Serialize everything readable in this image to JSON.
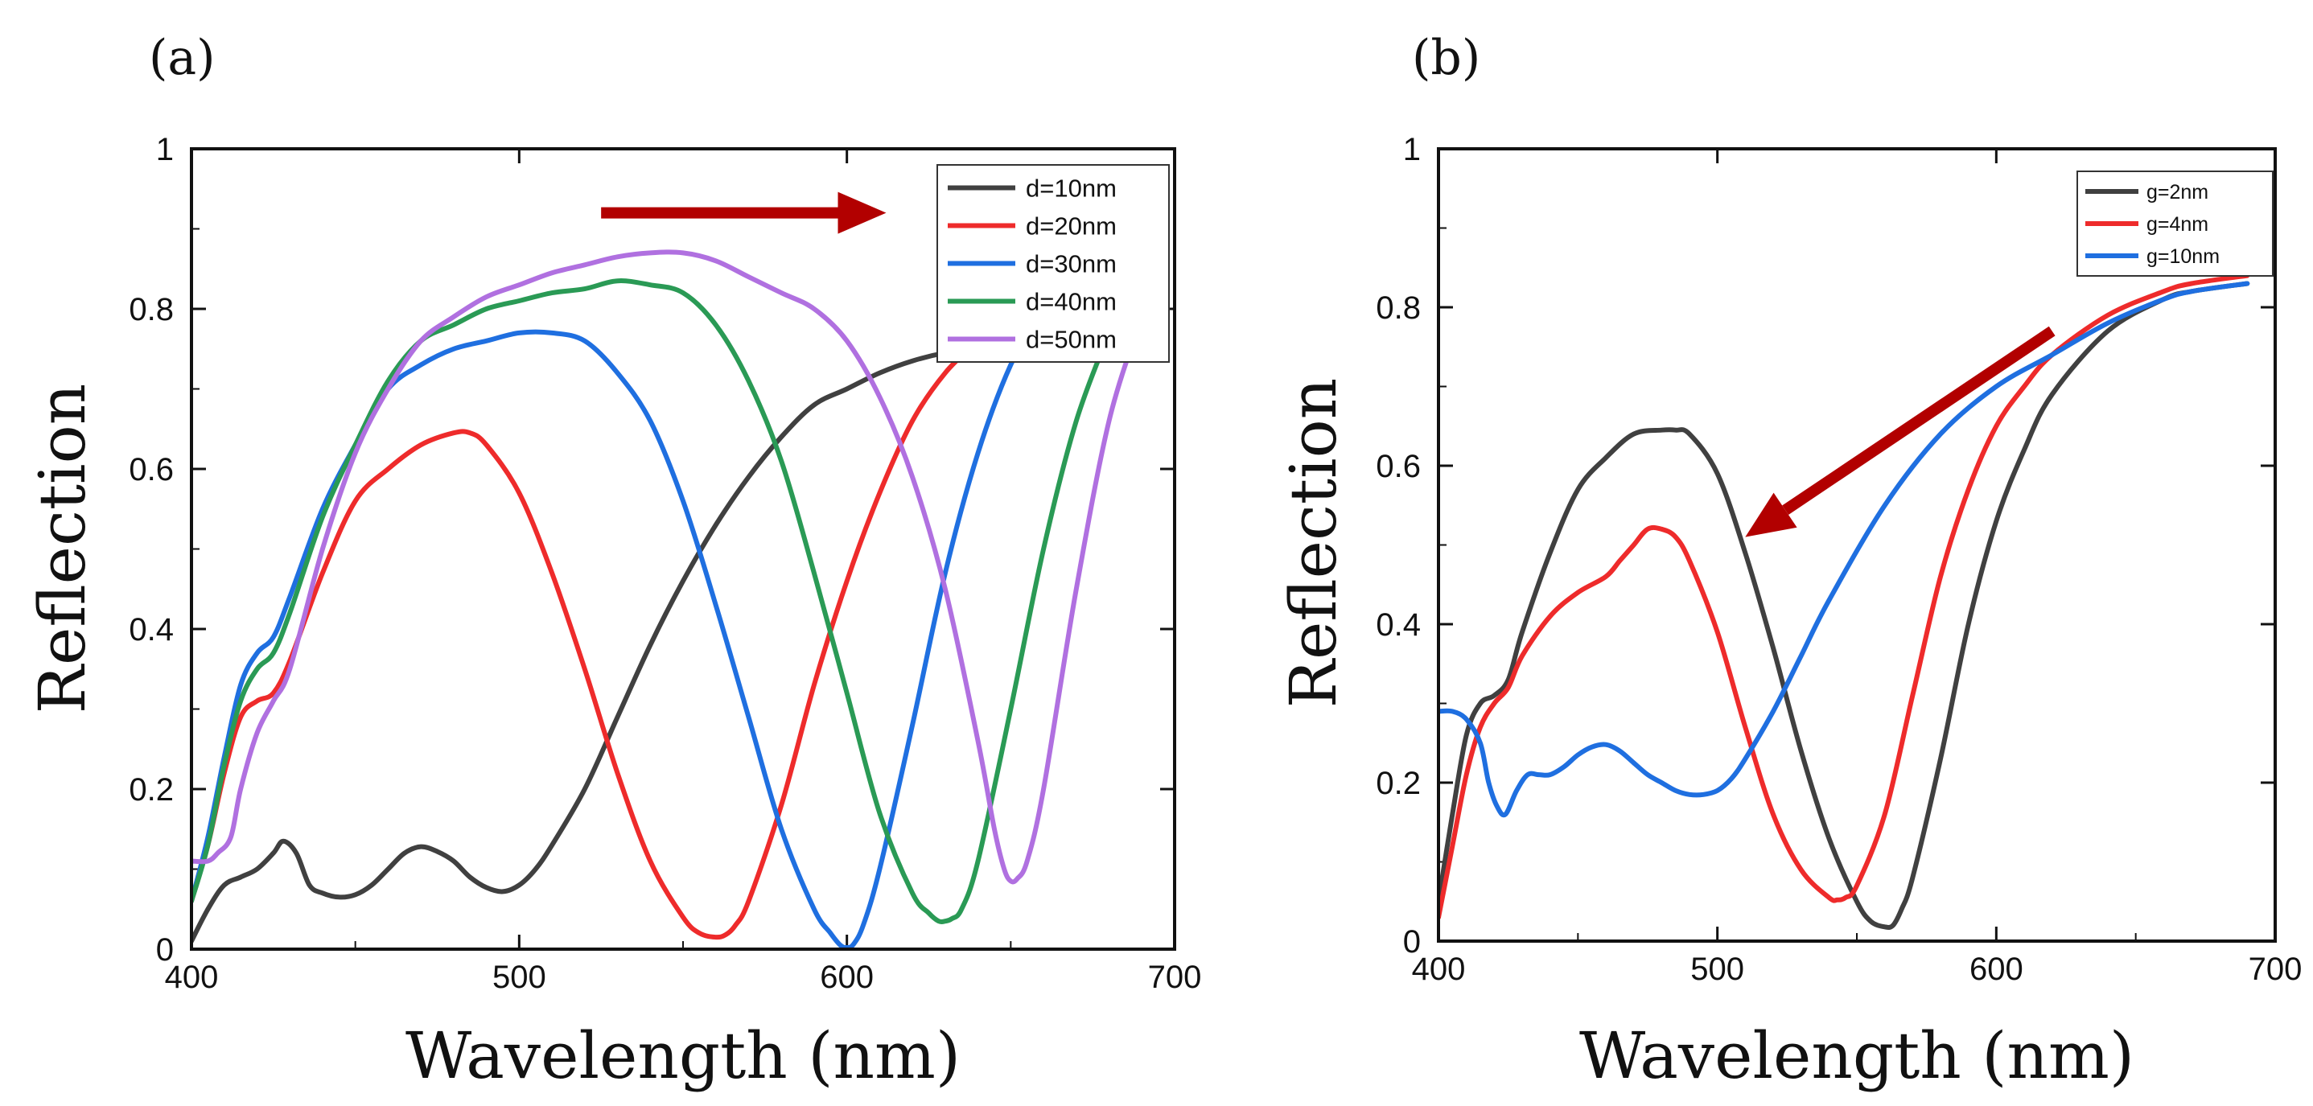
{
  "figure": {
    "panel_labels": [
      "(a)",
      "(b)"
    ]
  },
  "chart_data": [
    {
      "type": "line",
      "panel": "(a)",
      "xlabel": "Wavelength (nm)",
      "ylabel": "Reflection",
      "xlim": [
        400,
        700
      ],
      "ylim": [
        0,
        1
      ],
      "xticks": [
        400,
        500,
        600,
        700
      ],
      "yticks": [
        0,
        0.2,
        0.4,
        0.6,
        0.8,
        1
      ],
      "ytick_labels": [
        "0",
        "0.2",
        "0.4",
        "0.6",
        "0.8",
        "1"
      ],
      "legend_position": "top-right",
      "annotation": {
        "type": "arrow",
        "direction": "right",
        "from": [
          525,
          0.92
        ],
        "to": [
          612,
          0.92
        ],
        "color": "#b20000"
      },
      "series": [
        {
          "name": "d=10nm",
          "color": "#404040",
          "x": [
            400,
            405,
            410,
            415,
            420,
            425,
            428,
            432,
            436,
            440,
            445,
            450,
            455,
            460,
            465,
            470,
            475,
            480,
            485,
            490,
            495,
            500,
            505,
            510,
            520,
            530,
            540,
            550,
            560,
            570,
            580,
            590,
            600,
            610,
            620,
            630,
            640
          ],
          "y": [
            0.01,
            0.05,
            0.08,
            0.09,
            0.1,
            0.12,
            0.135,
            0.12,
            0.08,
            0.07,
            0.065,
            0.068,
            0.08,
            0.1,
            0.12,
            0.128,
            0.122,
            0.11,
            0.09,
            0.077,
            0.072,
            0.08,
            0.1,
            0.13,
            0.2,
            0.29,
            0.38,
            0.46,
            0.53,
            0.59,
            0.64,
            0.68,
            0.7,
            0.72,
            0.735,
            0.745,
            0.75
          ]
        },
        {
          "name": "d=20nm",
          "color": "#ee2b2b",
          "x": [
            400,
            405,
            410,
            415,
            420,
            425,
            430,
            440,
            450,
            460,
            470,
            480,
            485,
            490,
            500,
            510,
            520,
            530,
            540,
            550,
            555,
            560,
            563,
            566,
            570,
            580,
            590,
            600,
            610,
            620,
            630,
            640
          ],
          "y": [
            0.06,
            0.13,
            0.22,
            0.29,
            0.31,
            0.32,
            0.36,
            0.47,
            0.56,
            0.6,
            0.63,
            0.645,
            0.645,
            0.63,
            0.57,
            0.47,
            0.35,
            0.22,
            0.11,
            0.04,
            0.02,
            0.015,
            0.018,
            0.03,
            0.06,
            0.18,
            0.33,
            0.46,
            0.57,
            0.66,
            0.72,
            0.76
          ]
        },
        {
          "name": "d=30nm",
          "color": "#1f6fe0",
          "x": [
            400,
            405,
            410,
            415,
            420,
            425,
            430,
            440,
            450,
            460,
            470,
            480,
            490,
            500,
            510,
            520,
            530,
            540,
            550,
            560,
            570,
            580,
            590,
            595,
            598,
            600,
            602,
            605,
            610,
            620,
            630,
            640,
            650,
            660
          ],
          "y": [
            0.06,
            0.14,
            0.24,
            0.33,
            0.37,
            0.39,
            0.44,
            0.55,
            0.63,
            0.7,
            0.73,
            0.75,
            0.76,
            0.77,
            0.77,
            0.76,
            0.72,
            0.66,
            0.56,
            0.43,
            0.29,
            0.15,
            0.05,
            0.02,
            0.005,
            0.002,
            0.006,
            0.03,
            0.1,
            0.28,
            0.47,
            0.62,
            0.73,
            0.8
          ]
        },
        {
          "name": "d=40nm",
          "color": "#2a9a55",
          "x": [
            400,
            405,
            410,
            415,
            420,
            425,
            430,
            440,
            450,
            460,
            470,
            480,
            490,
            500,
            510,
            520,
            530,
            540,
            550,
            560,
            570,
            580,
            590,
            600,
            610,
            620,
            625,
            628,
            630,
            632,
            635,
            640,
            650,
            660,
            670,
            680
          ],
          "y": [
            0.06,
            0.13,
            0.23,
            0.31,
            0.35,
            0.37,
            0.42,
            0.54,
            0.63,
            0.71,
            0.76,
            0.78,
            0.8,
            0.81,
            0.82,
            0.825,
            0.835,
            0.83,
            0.82,
            0.78,
            0.71,
            0.61,
            0.47,
            0.32,
            0.17,
            0.07,
            0.045,
            0.035,
            0.035,
            0.038,
            0.05,
            0.11,
            0.3,
            0.5,
            0.66,
            0.77
          ]
        },
        {
          "name": "d=50nm",
          "color": "#b070e0",
          "x": [
            400,
            405,
            408,
            412,
            415,
            420,
            425,
            430,
            440,
            450,
            460,
            470,
            480,
            490,
            500,
            510,
            520,
            530,
            540,
            550,
            560,
            570,
            580,
            590,
            600,
            610,
            620,
            630,
            640,
            645,
            648,
            650,
            652,
            655,
            660,
            670,
            680,
            690
          ],
          "y": [
            0.11,
            0.11,
            0.12,
            0.14,
            0.2,
            0.27,
            0.31,
            0.35,
            0.5,
            0.62,
            0.7,
            0.76,
            0.79,
            0.815,
            0.83,
            0.845,
            0.855,
            0.865,
            0.87,
            0.87,
            0.86,
            0.84,
            0.82,
            0.8,
            0.76,
            0.69,
            0.59,
            0.45,
            0.26,
            0.15,
            0.1,
            0.085,
            0.088,
            0.11,
            0.2,
            0.45,
            0.66,
            0.79
          ]
        }
      ]
    },
    {
      "type": "line",
      "panel": "(b)",
      "xlabel": "Wavelength (nm)",
      "ylabel": "Reflection",
      "xlim": [
        400,
        700
      ],
      "ylim": [
        0,
        1
      ],
      "xticks": [
        400,
        500,
        600,
        700
      ],
      "yticks": [
        0,
        0.2,
        0.4,
        0.6,
        0.8,
        1
      ],
      "ytick_labels": [
        "0",
        "0.2",
        "0.4",
        "0.6",
        "0.8",
        "1"
      ],
      "legend_position": "top-right",
      "annotation": {
        "type": "arrow",
        "direction": "down-left",
        "from": [
          620,
          0.77
        ],
        "to": [
          510,
          0.51
        ],
        "color": "#b20000"
      },
      "series": [
        {
          "name": "g=2nm",
          "color": "#404040",
          "x": [
            400,
            405,
            410,
            415,
            420,
            425,
            430,
            440,
            450,
            460,
            470,
            480,
            485,
            490,
            500,
            510,
            520,
            530,
            540,
            550,
            555,
            560,
            563,
            566,
            570,
            580,
            590,
            600,
            610,
            620,
            640,
            660,
            670,
            690
          ],
          "y": [
            0.05,
            0.16,
            0.26,
            0.3,
            0.31,
            0.33,
            0.39,
            0.49,
            0.57,
            0.61,
            0.64,
            0.645,
            0.645,
            0.64,
            0.59,
            0.49,
            0.37,
            0.24,
            0.13,
            0.05,
            0.025,
            0.018,
            0.02,
            0.04,
            0.08,
            0.23,
            0.4,
            0.53,
            0.62,
            0.69,
            0.77,
            0.81,
            0.82,
            0.83
          ]
        },
        {
          "name": "g=4nm",
          "color": "#ee2b2b",
          "x": [
            400,
            405,
            410,
            415,
            420,
            425,
            430,
            440,
            450,
            460,
            465,
            470,
            475,
            480,
            485,
            490,
            500,
            510,
            520,
            530,
            540,
            543,
            546,
            550,
            560,
            570,
            580,
            590,
            600,
            610,
            620,
            640,
            660,
            670,
            690
          ],
          "y": [
            0.03,
            0.12,
            0.21,
            0.27,
            0.3,
            0.32,
            0.36,
            0.41,
            0.44,
            0.46,
            0.48,
            0.5,
            0.52,
            0.52,
            0.51,
            0.48,
            0.39,
            0.27,
            0.16,
            0.09,
            0.055,
            0.052,
            0.055,
            0.07,
            0.16,
            0.31,
            0.46,
            0.57,
            0.65,
            0.7,
            0.74,
            0.79,
            0.82,
            0.83,
            0.84
          ]
        },
        {
          "name": "g=10nm",
          "color": "#1f6fe0",
          "x": [
            400,
            405,
            410,
            415,
            418,
            421,
            424,
            428,
            432,
            436,
            440,
            445,
            450,
            455,
            460,
            465,
            470,
            475,
            480,
            485,
            490,
            495,
            500,
            505,
            510,
            520,
            530,
            540,
            560,
            580,
            600,
            620,
            640,
            660,
            670,
            690
          ],
          "y": [
            0.29,
            0.29,
            0.28,
            0.25,
            0.2,
            0.17,
            0.16,
            0.19,
            0.21,
            0.21,
            0.21,
            0.22,
            0.235,
            0.245,
            0.248,
            0.24,
            0.225,
            0.21,
            0.2,
            0.19,
            0.185,
            0.185,
            0.19,
            0.205,
            0.23,
            0.29,
            0.36,
            0.43,
            0.55,
            0.64,
            0.7,
            0.74,
            0.78,
            0.81,
            0.82,
            0.83
          ]
        }
      ]
    }
  ]
}
